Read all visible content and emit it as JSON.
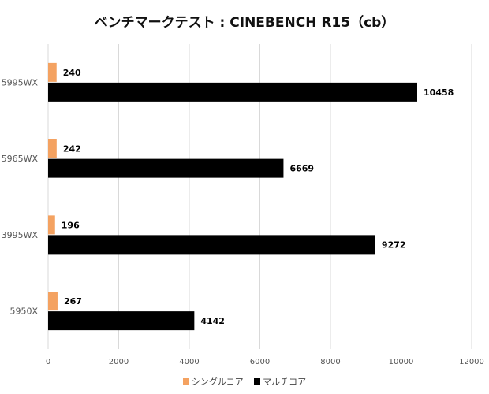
{
  "chart_data": {
    "type": "bar",
    "orientation": "horizontal",
    "title": "ベンチマークテスト : CINEBENCH R15（cb）",
    "xlabel": "",
    "ylabel": "",
    "xlim": [
      0,
      12000
    ],
    "xticks": [
      0,
      2000,
      4000,
      6000,
      8000,
      10000,
      12000
    ],
    "grid": true,
    "legend_position": "bottom",
    "categories": [
      "5995WX",
      "5965WX",
      "3995WX",
      "5950X"
    ],
    "series": [
      {
        "name": "シングルコア",
        "color": "#f4a261",
        "values": [
          240,
          242,
          196,
          267
        ]
      },
      {
        "name": "マルチコア",
        "color": "#000000",
        "values": [
          10458,
          6669,
          9272,
          4142
        ]
      }
    ]
  }
}
